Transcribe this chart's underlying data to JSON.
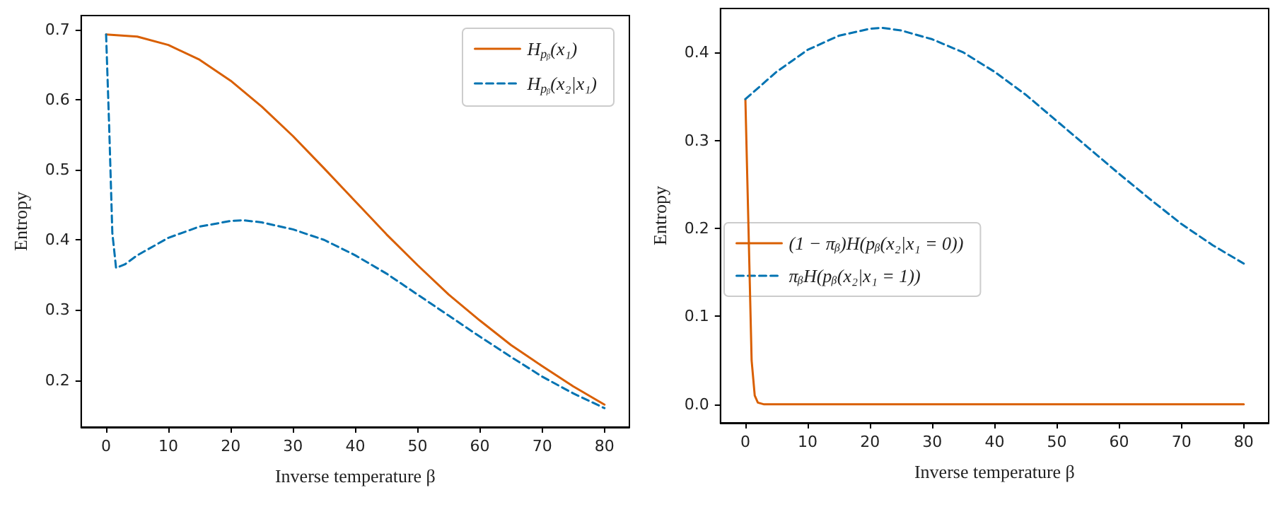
{
  "chart_data": [
    {
      "type": "line",
      "xlabel": "Inverse temperature β",
      "ylabel": "Entropy",
      "xlim": [
        -4,
        84
      ],
      "ylim": [
        0.133,
        0.72
      ],
      "xticks": [
        0,
        10,
        20,
        30,
        40,
        50,
        60,
        70,
        80
      ],
      "yticks": [
        0.2,
        0.3,
        0.4,
        0.5,
        0.6,
        0.7
      ],
      "grid": false,
      "legend": "top right",
      "marker": "none",
      "series": [
        {
          "name": "H$_{pᵦ}$(x₁)",
          "color": "#d95f02",
          "line_style": "solid",
          "x": [
            0,
            5,
            10,
            15,
            20,
            25,
            30,
            35,
            40,
            45,
            50,
            55,
            60,
            65,
            70,
            75,
            80
          ],
          "values": [
            0.693,
            0.69,
            0.678,
            0.657,
            0.627,
            0.59,
            0.548,
            0.502,
            0.455,
            0.408,
            0.364,
            0.322,
            0.285,
            0.25,
            0.22,
            0.191,
            0.165
          ]
        },
        {
          "name": "H$_{pᵦ}$(x₂|x₁)",
          "color": "#0173b2",
          "line_style": "dashed",
          "x": [
            0,
            0.5,
            1,
            1.6,
            3,
            5,
            10,
            15,
            20,
            22,
            25,
            30,
            35,
            40,
            45,
            50,
            55,
            60,
            65,
            70,
            75,
            80
          ],
          "values": [
            0.693,
            0.56,
            0.41,
            0.36,
            0.365,
            0.378,
            0.403,
            0.419,
            0.427,
            0.428,
            0.425,
            0.415,
            0.4,
            0.378,
            0.352,
            0.322,
            0.292,
            0.262,
            0.233,
            0.205,
            0.181,
            0.16
          ]
        }
      ]
    },
    {
      "type": "line",
      "xlabel": "Inverse temperature β",
      "ylabel": "Entropy",
      "xlim": [
        -4,
        84
      ],
      "ylim": [
        -0.021,
        0.45
      ],
      "xticks": [
        0,
        10,
        20,
        30,
        40,
        50,
        60,
        70,
        80
      ],
      "yticks": [
        {
          "value": 0,
          "label": "0.0"
        },
        0.1,
        0.2,
        0.3,
        0.4
      ],
      "grid": false,
      "legend": "left",
      "marker": "none",
      "series": [
        {
          "name": "(1 − πᵦ)H(pᵦ(x₂|x₁ = 0))",
          "color": "#d95f02",
          "line_style": "solid",
          "x": [
            0,
            0.5,
            1,
            1.5,
            2,
            3,
            80
          ],
          "values": [
            0.347,
            0.2,
            0.05,
            0.01,
            0.002,
            0,
            0
          ]
        },
        {
          "name": "πᵦH(pᵦ(x₂|x₁ = 1))",
          "color": "#0173b2",
          "line_style": "dashed",
          "x": [
            0,
            5,
            10,
            15,
            20,
            22,
            25,
            30,
            35,
            40,
            45,
            50,
            55,
            60,
            65,
            70,
            75,
            80
          ],
          "values": [
            0.347,
            0.378,
            0.403,
            0.419,
            0.427,
            0.428,
            0.425,
            0.415,
            0.4,
            0.378,
            0.352,
            0.322,
            0.292,
            0.262,
            0.233,
            0.205,
            0.181,
            0.16
          ]
        }
      ]
    }
  ]
}
